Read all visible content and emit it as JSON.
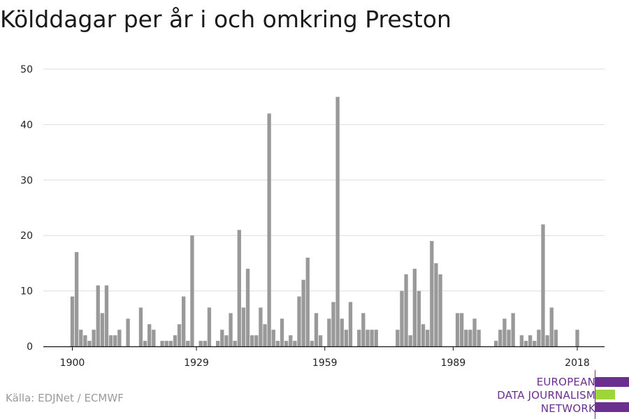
{
  "title": "Kölddagar per år i och omkring Preston",
  "source": "Källa: EDJNet / ECMWF",
  "logo": {
    "lines": [
      "EUROPEAN",
      "DATA JOURNALISM",
      "NETWORK"
    ],
    "colors": {
      "purple": "#6b2f8f",
      "green": "#9ed53a"
    }
  },
  "chart_data": {
    "type": "bar",
    "title": "Kölddagar per år i och omkring Preston",
    "xlabel": "",
    "ylabel": "",
    "xlim": [
      1900,
      2018
    ],
    "ylim": [
      0,
      50
    ],
    "yticks": [
      0,
      10,
      20,
      30,
      40,
      50
    ],
    "xticks": [
      1900,
      1929,
      1959,
      1989,
      2018
    ],
    "bar_color": "#999999",
    "grid": true,
    "x": [
      1900,
      1901,
      1902,
      1903,
      1904,
      1905,
      1906,
      1907,
      1908,
      1909,
      1910,
      1911,
      1912,
      1913,
      1914,
      1915,
      1916,
      1917,
      1918,
      1919,
      1920,
      1921,
      1922,
      1923,
      1924,
      1925,
      1926,
      1927,
      1928,
      1929,
      1930,
      1931,
      1932,
      1933,
      1934,
      1935,
      1936,
      1937,
      1938,
      1939,
      1940,
      1941,
      1942,
      1943,
      1944,
      1945,
      1946,
      1947,
      1948,
      1949,
      1950,
      1951,
      1952,
      1953,
      1954,
      1955,
      1956,
      1957,
      1958,
      1959,
      1960,
      1961,
      1962,
      1963,
      1964,
      1965,
      1966,
      1967,
      1968,
      1969,
      1970,
      1971,
      1972,
      1973,
      1974,
      1975,
      1976,
      1977,
      1978,
      1979,
      1980,
      1981,
      1982,
      1983,
      1984,
      1985,
      1986,
      1987,
      1988,
      1989,
      1990,
      1991,
      1992,
      1993,
      1994,
      1995,
      1996,
      1997,
      1998,
      1999,
      2000,
      2001,
      2002,
      2003,
      2004,
      2005,
      2006,
      2007,
      2008,
      2009,
      2010,
      2011,
      2012,
      2013,
      2014,
      2015,
      2016,
      2017,
      2018
    ],
    "values": [
      9,
      17,
      3,
      2,
      1,
      3,
      11,
      6,
      11,
      2,
      2,
      3,
      0,
      5,
      0,
      0,
      7,
      1,
      4,
      3,
      0,
      1,
      1,
      1,
      2,
      4,
      9,
      1,
      20,
      0,
      1,
      1,
      7,
      0,
      1,
      3,
      2,
      6,
      1,
      21,
      7,
      14,
      2,
      2,
      7,
      4,
      42,
      3,
      1,
      5,
      1,
      2,
      1,
      9,
      12,
      16,
      1,
      6,
      2,
      0,
      5,
      8,
      45,
      5,
      3,
      8,
      0,
      3,
      6,
      3,
      3,
      3,
      0,
      0,
      0,
      0,
      3,
      10,
      13,
      2,
      14,
      10,
      4,
      3,
      19,
      15,
      13,
      0,
      0,
      0,
      6,
      6,
      3,
      3,
      5,
      3,
      0,
      0,
      0,
      1,
      3,
      5,
      3,
      6,
      0,
      2,
      1,
      2,
      1,
      3,
      22,
      2,
      7,
      3,
      0,
      0,
      0,
      0,
      3
    ]
  }
}
